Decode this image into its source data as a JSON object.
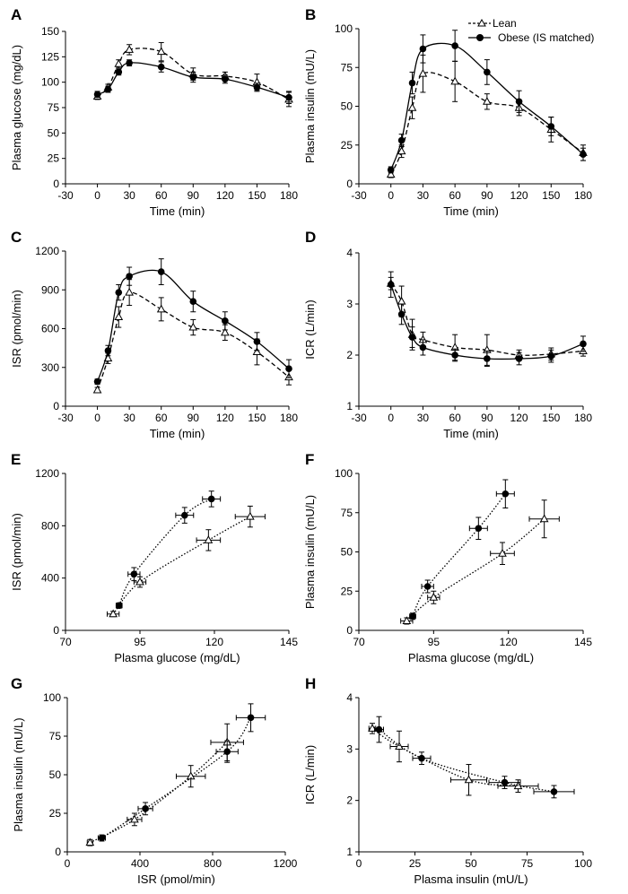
{
  "figure": {
    "legend": {
      "lean": "Lean",
      "obese": "Obese (IS matched)"
    }
  },
  "chart_data": [
    {
      "panel": "A",
      "type": "line",
      "xlabel": "Time (min)",
      "ylabel": "Plasma glucose (mg/dL)",
      "xlim": [
        -30,
        180
      ],
      "xticks": [
        -30,
        0,
        30,
        60,
        90,
        120,
        150,
        180
      ],
      "ylim": [
        0,
        150
      ],
      "yticks": [
        0,
        25,
        50,
        75,
        100,
        125,
        150
      ],
      "x": [
        0,
        10,
        20,
        30,
        60,
        90,
        120,
        150,
        180
      ],
      "series": [
        {
          "name": "Lean",
          "marker": "triangle",
          "line": "dashed",
          "values": [
            86,
            95,
            118,
            132,
            130,
            108,
            106,
            100,
            83
          ],
          "err": [
            3,
            3,
            4,
            5,
            9,
            6,
            4,
            8,
            7
          ]
        },
        {
          "name": "Obese (IS matched)",
          "marker": "circle",
          "line": "solid",
          "values": [
            88,
            93,
            110,
            119,
            115,
            105,
            103,
            95,
            85
          ],
          "err": [
            3,
            3,
            3,
            3,
            5,
            5,
            4,
            4,
            6
          ]
        }
      ]
    },
    {
      "panel": "B",
      "type": "line",
      "xlabel": "Time (min)",
      "ylabel": "Plasma insulin (mU/L)",
      "xlim": [
        -30,
        180
      ],
      "xticks": [
        -30,
        0,
        30,
        60,
        90,
        120,
        150,
        180
      ],
      "ylim": [
        0,
        100
      ],
      "yticks": [
        0,
        25,
        50,
        75,
        100
      ],
      "x": [
        0,
        10,
        20,
        30,
        60,
        90,
        120,
        150,
        180
      ],
      "series": [
        {
          "name": "Lean",
          "marker": "triangle",
          "line": "dashed",
          "values": [
            6,
            21,
            49,
            71,
            66,
            53,
            49,
            35,
            20
          ],
          "err": [
            2,
            4,
            7,
            12,
            13,
            5,
            5,
            8,
            5
          ]
        },
        {
          "name": "Obese (IS matched)",
          "marker": "circle",
          "line": "solid",
          "values": [
            9,
            28,
            65,
            87,
            89,
            72,
            53,
            37,
            19
          ],
          "err": [
            2,
            4,
            7,
            9,
            10,
            8,
            7,
            6,
            4
          ]
        }
      ]
    },
    {
      "panel": "C",
      "type": "line",
      "xlabel": "Time (min)",
      "ylabel": "ISR (pmol/min)",
      "xlim": [
        -30,
        180
      ],
      "xticks": [
        -30,
        0,
        30,
        60,
        90,
        120,
        150,
        180
      ],
      "ylim": [
        0,
        1200
      ],
      "yticks": [
        0,
        300,
        600,
        900,
        1200
      ],
      "x": [
        0,
        10,
        20,
        30,
        60,
        90,
        120,
        150,
        180
      ],
      "series": [
        {
          "name": "Lean",
          "marker": "triangle",
          "line": "dashed",
          "values": [
            125,
            370,
            690,
            880,
            750,
            610,
            570,
            420,
            225
          ],
          "err": [
            20,
            40,
            80,
            100,
            90,
            60,
            60,
            100,
            60
          ]
        },
        {
          "name": "Obese (IS matched)",
          "marker": "circle",
          "line": "solid",
          "values": [
            190,
            430,
            880,
            1005,
            1040,
            810,
            660,
            500,
            290
          ],
          "err": [
            20,
            40,
            60,
            70,
            100,
            80,
            70,
            70,
            70
          ]
        }
      ]
    },
    {
      "panel": "D",
      "type": "line",
      "xlabel": "Time (min)",
      "ylabel": "ICR (L/min)",
      "xlim": [
        -30,
        180
      ],
      "xticks": [
        -30,
        0,
        30,
        60,
        90,
        120,
        150,
        180
      ],
      "ylim": [
        1,
        4
      ],
      "yticks": [
        1,
        2,
        3,
        4
      ],
      "x": [
        0,
        10,
        20,
        30,
        60,
        90,
        120,
        150,
        180
      ],
      "series": [
        {
          "name": "Lean",
          "marker": "triangle",
          "line": "dashed",
          "values": [
            3.4,
            3.05,
            2.4,
            2.3,
            2.15,
            2.1,
            2.0,
            2.02,
            2.08
          ],
          "err": [
            0.12,
            0.3,
            0.3,
            0.15,
            0.25,
            0.3,
            0.1,
            0.12,
            0.1
          ]
        },
        {
          "name": "Obese (IS matched)",
          "marker": "circle",
          "line": "solid",
          "values": [
            3.38,
            2.8,
            2.35,
            2.15,
            2.0,
            1.93,
            1.93,
            1.98,
            2.22
          ],
          "err": [
            0.25,
            0.2,
            0.2,
            0.15,
            0.12,
            0.15,
            0.12,
            0.12,
            0.15
          ]
        }
      ]
    },
    {
      "panel": "E",
      "type": "scatter",
      "xlabel": "Plasma glucose (mg/dL)",
      "ylabel": "ISR (pmol/min)",
      "xlim": [
        70,
        145
      ],
      "xticks": [
        70,
        95,
        120,
        145
      ],
      "ylim": [
        0,
        1200
      ],
      "yticks": [
        0,
        400,
        800,
        1200
      ],
      "series": [
        {
          "name": "Lean",
          "marker": "triangle",
          "line": "dotted",
          "x": [
            86,
            95,
            118,
            132
          ],
          "y": [
            125,
            370,
            690,
            870
          ],
          "xerr": [
            2,
            2,
            4,
            5
          ],
          "yerr": [
            20,
            40,
            80,
            80
          ]
        },
        {
          "name": "Obese (IS matched)",
          "marker": "circle",
          "line": "dotted",
          "x": [
            88,
            93,
            110,
            119
          ],
          "y": [
            190,
            430,
            880,
            1005
          ],
          "xerr": [
            1,
            2,
            3,
            3
          ],
          "yerr": [
            20,
            50,
            60,
            60
          ]
        }
      ]
    },
    {
      "panel": "F",
      "type": "scatter",
      "xlabel": "Plasma glucose (mg/dL)",
      "ylabel": "Plasma insulin (mU/L)",
      "xlim": [
        70,
        145
      ],
      "xticks": [
        70,
        95,
        120,
        145
      ],
      "ylim": [
        0,
        100
      ],
      "yticks": [
        0,
        25,
        50,
        75,
        100
      ],
      "series": [
        {
          "name": "Lean",
          "marker": "triangle",
          "line": "dotted",
          "x": [
            86,
            95,
            118,
            132
          ],
          "y": [
            6,
            21,
            49,
            71
          ],
          "xerr": [
            2,
            2,
            4,
            5
          ],
          "yerr": [
            2,
            4,
            7,
            12
          ]
        },
        {
          "name": "Obese (IS matched)",
          "marker": "circle",
          "line": "dotted",
          "x": [
            88,
            93,
            110,
            119
          ],
          "y": [
            9,
            28,
            65,
            87
          ],
          "xerr": [
            1,
            2,
            3,
            3
          ],
          "yerr": [
            2,
            4,
            7,
            9
          ]
        }
      ]
    },
    {
      "panel": "G",
      "type": "scatter",
      "xlabel": "ISR (pmol/min)",
      "ylabel": "Plasma insulin (mU/L)",
      "xlim": [
        0,
        1200
      ],
      "xticks": [
        0,
        400,
        800,
        1200
      ],
      "ylim": [
        0,
        100
      ],
      "yticks": [
        0,
        25,
        50,
        75,
        100
      ],
      "series": [
        {
          "name": "Lean",
          "marker": "triangle",
          "line": "dotted",
          "x": [
            125,
            370,
            680,
            880
          ],
          "y": [
            6,
            21,
            49,
            71
          ],
          "xerr": [
            15,
            40,
            80,
            90
          ],
          "yerr": [
            2,
            4,
            7,
            12
          ]
        },
        {
          "name": "Obese (IS matched)",
          "marker": "circle",
          "line": "dotted",
          "x": [
            190,
            430,
            880,
            1010
          ],
          "y": [
            9,
            28,
            65,
            87
          ],
          "xerr": [
            20,
            40,
            60,
            80
          ],
          "yerr": [
            2,
            4,
            7,
            9
          ]
        }
      ]
    },
    {
      "panel": "H",
      "type": "scatter",
      "xlabel": "Plasma insulin (mU/L)",
      "ylabel": "ICR (L/min)",
      "xlim": [
        0,
        100
      ],
      "xticks": [
        0,
        25,
        50,
        75,
        100
      ],
      "ylim": [
        1,
        4
      ],
      "yticks": [
        1,
        2,
        3,
        4
      ],
      "series": [
        {
          "name": "Lean",
          "marker": "triangle",
          "line": "dotted",
          "x": [
            6,
            18,
            49,
            71
          ],
          "y": [
            3.4,
            3.05,
            2.4,
            2.28
          ],
          "xerr": [
            1.5,
            4,
            8,
            9
          ],
          "yerr": [
            0.1,
            0.3,
            0.3,
            0.12
          ]
        },
        {
          "name": "Obese (IS matched)",
          "marker": "circle",
          "line": "dotted",
          "x": [
            9,
            28,
            65,
            87
          ],
          "y": [
            3.38,
            2.82,
            2.35,
            2.17
          ],
          "xerr": [
            2,
            4,
            7,
            9
          ],
          "yerr": [
            0.25,
            0.12,
            0.12,
            0.12
          ]
        }
      ]
    }
  ]
}
